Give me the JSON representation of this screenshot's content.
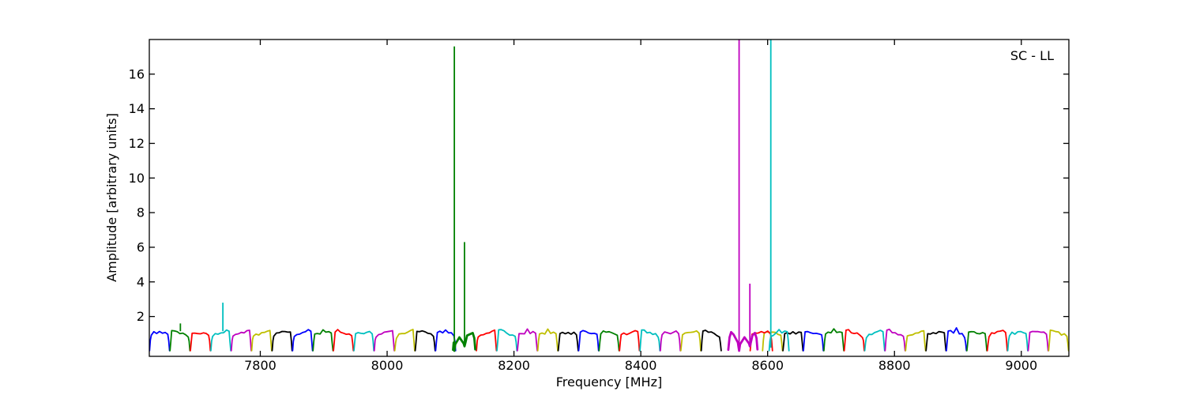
{
  "chart_data": {
    "type": "line",
    "description": "Sub-band autocorrelation bandpass spectrum with RFI spikes",
    "annotation": "SC - LL",
    "xlabel": "Frequency [MHz]",
    "ylabel": "Amplitude [arbitrary units]",
    "xlim": [
      7625,
      9075
    ],
    "ylim": [
      -0.3,
      18.0
    ],
    "xticks": [
      7800,
      8000,
      8200,
      8400,
      8600,
      8800,
      9000
    ],
    "yticks": [
      2,
      4,
      6,
      8,
      10,
      12,
      14,
      16
    ],
    "grid": false,
    "legend": "none",
    "color_cycle": [
      "#0000ff",
      "#008000",
      "#ff0000",
      "#00bfbf",
      "#bf00bf",
      "#bfbf00",
      "#000000"
    ],
    "subbands": {
      "count": 45,
      "start_mhz": 7625,
      "width_mhz": 32.22,
      "top_amplitude": 1.08,
      "notch_amplitude": 0.03,
      "skip_indices": [
        15,
        28,
        29
      ],
      "cycle_phase_shift_after_rfi": {
        "from_index": 30,
        "shift": 3
      }
    },
    "extra_subbands": [
      {
        "range_mhz": [
          8572,
          8608
        ],
        "color": "#ff0000"
      },
      {
        "range_mhz": [
          8602,
          8634
        ],
        "color": "#00bfbf"
      }
    ],
    "distorted_subbands": [
      {
        "shape": "W",
        "color": "#008000",
        "range_mhz": [
          8104,
          8139
        ],
        "dips_mhz": [
          8106,
          8122
        ],
        "dip_amplitude": 0.02
      },
      {
        "shape": "W",
        "color": "#bf00bf",
        "range_mhz": [
          8538,
          8584
        ],
        "dips_mhz": [
          8555,
          8572
        ],
        "dip_amplitude": 0.02
      }
    ],
    "spikes": [
      {
        "freq_mhz": 7674,
        "amplitude": 1.6,
        "base": 1.15,
        "color": "#008000",
        "clipped_at_top": false
      },
      {
        "freq_mhz": 7741,
        "amplitude": 2.8,
        "base": 1.15,
        "color": "#00bfbf",
        "clipped_at_top": false
      },
      {
        "freq_mhz": 8106,
        "amplitude": 17.6,
        "base": 0.0,
        "color": "#008000",
        "clipped_at_top": false
      },
      {
        "freq_mhz": 8122,
        "amplitude": 6.3,
        "base": 0.3,
        "color": "#008000",
        "clipped_at_top": false
      },
      {
        "freq_mhz": 8555,
        "amplitude": 18.0,
        "base": 0.0,
        "color": "#bf00bf",
        "clipped_at_top": true
      },
      {
        "freq_mhz": 8572,
        "amplitude": 3.9,
        "base": 0.3,
        "color": "#bf00bf",
        "clipped_at_top": false
      },
      {
        "freq_mhz": 8605,
        "amplitude": 18.0,
        "base": 0.2,
        "color": "#00bfbf",
        "clipped_at_top": true
      }
    ],
    "frame_color": "#000000",
    "background_color": "#ffffff"
  }
}
